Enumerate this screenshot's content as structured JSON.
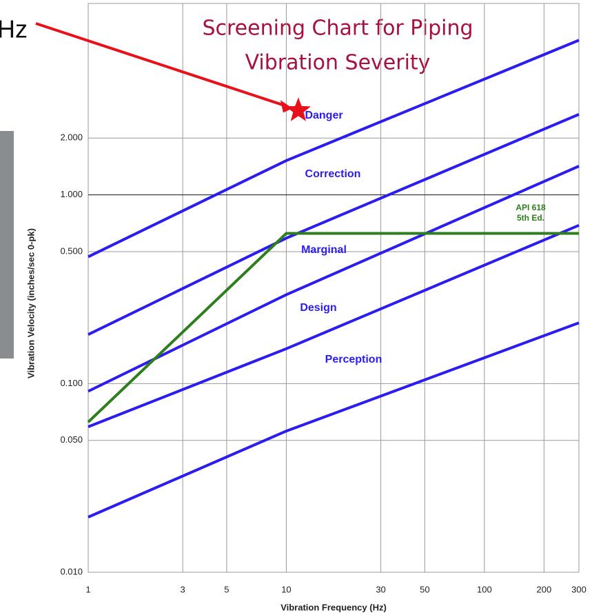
{
  "chart_data": {
    "type": "line",
    "title": [
      "Screening Chart for Piping",
      "Vibration Severity"
    ],
    "side_text": "Hz",
    "x_label": "Vibration Frequency (Hz)",
    "y_label": "Vibration Velocity (inches/sec  0-pk)",
    "log_x": true,
    "log_y": true,
    "grid": true,
    "xlim": [
      1,
      300
    ],
    "xticks": [
      1,
      3,
      5,
      10,
      30,
      50,
      100,
      200,
      300
    ],
    "ylim": [
      0.01,
      10
    ],
    "yticks": [
      {
        "value": 0.01,
        "label": "0.010"
      },
      {
        "value": 0.05,
        "label": "0.050"
      },
      {
        "value": 0.1,
        "label": "0.100"
      },
      {
        "value": 0.5,
        "label": "0.500"
      },
      {
        "value": 1,
        "label": "1.000"
      },
      {
        "value": 2,
        "label": "2.000"
      }
    ],
    "x": [
      1,
      10,
      300
    ],
    "series": [
      {
        "name": "Danger",
        "color": "#2b1cf0",
        "values": [
          0.47,
          1.52,
          6.6
        ]
      },
      {
        "name": "Correction",
        "color": "#2b1cf0",
        "values": [
          0.182,
          0.59,
          2.67
        ]
      },
      {
        "name": "Marginal",
        "color": "#2b1cf0",
        "values": [
          0.091,
          0.296,
          1.42
        ]
      },
      {
        "name": "Design",
        "color": "#2b1cf0",
        "values": [
          0.059,
          0.153,
          0.69
        ]
      },
      {
        "name": "Perception",
        "color": "#2b1cf0",
        "values": [
          0.0196,
          0.056,
          0.21
        ]
      }
    ],
    "reference": {
      "label": [
        "API 618",
        "5th Ed."
      ],
      "color": "#2e7d1e",
      "values": [
        0.0625,
        0.625,
        0.625
      ]
    },
    "highlight": {
      "x": 11.5,
      "y": 2.8,
      "color": "#e8101a"
    }
  }
}
